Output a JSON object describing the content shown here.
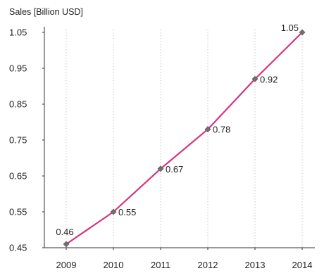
{
  "chart_data": {
    "type": "line",
    "title": "",
    "ylabel": "Sales [Billion USD]",
    "xlabel": "",
    "categories": [
      "2009",
      "2010",
      "2011",
      "2012",
      "2013",
      "2014"
    ],
    "series": [
      {
        "values": [
          0.46,
          0.55,
          0.67,
          0.78,
          0.92,
          1.05
        ],
        "data_labels": [
          "0.46",
          "0.55",
          "0.67",
          "0.78",
          "0.92",
          "1.05"
        ]
      }
    ],
    "yticks": [
      "0.45",
      "0.55",
      "0.65",
      "0.75",
      "0.85",
      "0.95",
      "1.05"
    ],
    "ylim": [
      0.45,
      1.05
    ],
    "line_color": "#d63384",
    "marker_color": "#707070",
    "marker_shape": "diamond",
    "grid": "vertical dotted lines at each year",
    "legend": "none"
  }
}
